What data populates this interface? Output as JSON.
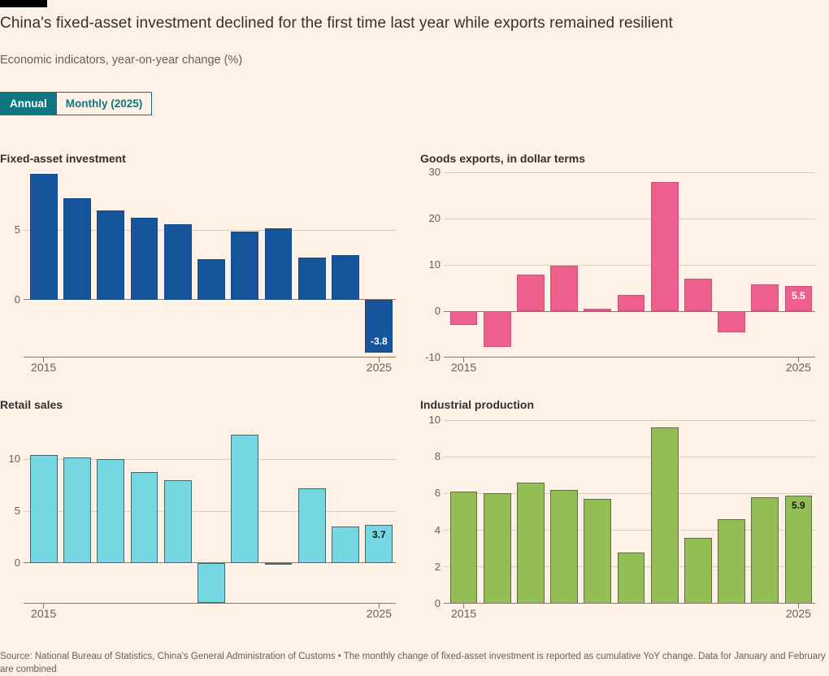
{
  "header": {
    "title": "China's fixed-asset investment declined for the first time last year while exports remained resilient",
    "subtitle": "Economic indicators, year-on-year change (%)",
    "tabs": [
      {
        "label": "Annual",
        "active": true
      },
      {
        "label": "Monthly (2025)",
        "active": false
      }
    ]
  },
  "colors": {
    "background": "#FFF1E5",
    "teal_accent": "#0D7680",
    "text_dark": "#33302E",
    "text_muted": "#66605B",
    "gridline": "#DCCDC0",
    "axis": "#827A6F"
  },
  "chart_data": [
    {
      "type": "bar",
      "title": "Fixed-asset investment",
      "categories": [
        "2015",
        "2016",
        "2017",
        "2018",
        "2019",
        "2020",
        "2021",
        "2022",
        "2023",
        "2024",
        "2025"
      ],
      "values": [
        9.0,
        7.3,
        6.4,
        5.9,
        5.4,
        2.9,
        4.9,
        5.1,
        3.0,
        3.2,
        -3.8
      ],
      "ylabel": "",
      "yticks": [
        0,
        5
      ],
      "ylim": [
        -4.15,
        9.55
      ],
      "grid": true,
      "xticklabels": [
        "2015",
        "2025"
      ],
      "bar_color": "#16549C",
      "bar_border": "#11498B",
      "last_label": {
        "text": "-3.8",
        "color": "#FFFFFF",
        "position": "bottom"
      }
    },
    {
      "type": "bar",
      "title": "Goods exports, in dollar terms",
      "categories": [
        "2015",
        "2016",
        "2017",
        "2018",
        "2019",
        "2020",
        "2021",
        "2022",
        "2023",
        "2024",
        "2025"
      ],
      "values": [
        -2.9,
        -7.7,
        7.9,
        9.9,
        0.5,
        3.6,
        28.0,
        7.0,
        -4.6,
        5.9,
        5.5
      ],
      "ylabel": "",
      "yticks": [
        -10,
        0,
        10,
        20,
        30
      ],
      "ylim": [
        -10,
        31.3
      ],
      "grid": true,
      "xticklabels": [
        "2015",
        "2025"
      ],
      "bar_color": "#ED5F8C",
      "bar_border": "#C9517E",
      "last_label": {
        "text": "5.5",
        "color": "#FFFFFF",
        "position": "top"
      }
    },
    {
      "type": "bar",
      "title": "Retail sales",
      "categories": [
        "2015",
        "2016",
        "2017",
        "2018",
        "2019",
        "2020",
        "2021",
        "2022",
        "2023",
        "2024",
        "2025"
      ],
      "values": [
        10.4,
        10.2,
        10.0,
        8.8,
        8.0,
        -3.9,
        12.4,
        -0.2,
        7.2,
        3.5,
        3.7
      ],
      "ylabel": "",
      "yticks": [
        0,
        5,
        10
      ],
      "ylim": [
        -3.95,
        14.5
      ],
      "grid": true,
      "xticklabels": [
        "2015",
        "2025"
      ],
      "bar_color": "#74D7E2",
      "bar_border": "#44686D",
      "last_label": {
        "text": "3.7",
        "color": "#1A1817",
        "position": "top"
      }
    },
    {
      "type": "bar",
      "title": "Industrial production",
      "categories": [
        "2015",
        "2016",
        "2017",
        "2018",
        "2019",
        "2020",
        "2021",
        "2022",
        "2023",
        "2024",
        "2025"
      ],
      "values": [
        6.1,
        6.0,
        6.6,
        6.2,
        5.7,
        2.8,
        9.6,
        3.6,
        4.6,
        5.8,
        5.9
      ],
      "ylabel": "",
      "yticks": [
        0,
        2,
        4,
        6,
        8,
        10
      ],
      "ylim": [
        0,
        10.4
      ],
      "grid": true,
      "xticklabels": [
        "2015",
        "2025"
      ],
      "bar_color": "#93BE55",
      "bar_border": "#5E6E44",
      "last_label": {
        "text": "5.9",
        "color": "#1A1817",
        "position": "top"
      }
    }
  ],
  "footer": {
    "source": "Source: National Bureau of Statistics, China's General Administration of Customs • The monthly change of fixed-asset investment is reported as cumulative YoY change. Data for January and February are combined"
  }
}
